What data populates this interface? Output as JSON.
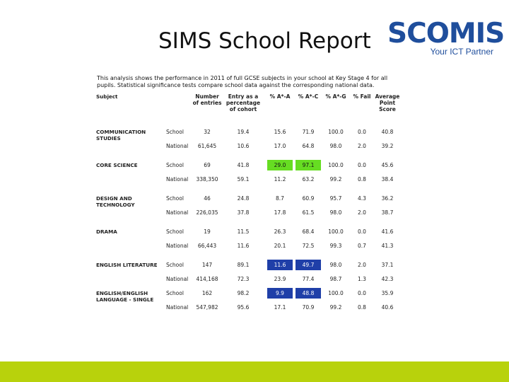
{
  "slide": {
    "title": "SIMS School Report",
    "footer_color": "#b8d20c"
  },
  "logo": {
    "word": "SCOMIS",
    "tagline": "Your ICT Partner",
    "colors": {
      "text": "#1f4e9c",
      "accent": "#b8cc10"
    }
  },
  "report": {
    "intro": "This analysis shows the performance in 2011 of full GCSE subjects in your school at Key Stage 4 for all pupils. Statistical significance tests compare school data against the corresponding national data.",
    "headers": {
      "subject": "Subject",
      "entries": "Number of entries",
      "pct_cohort": "Entry as a percentage of cohort",
      "a_star_a": "% A*-A",
      "a_star_c": "% A*-C",
      "a_star_g": "% A*-G",
      "fail": "% Fail",
      "aps": "Average Point Score"
    },
    "highlight_colors": {
      "green": "#66dd22",
      "blue": "#1f3fa8"
    },
    "subjects": [
      {
        "name": "COMMUNICATION STUDIES",
        "rows": [
          {
            "type": "School",
            "entries": "32",
            "pct": "19.4",
            "aa": "15.6",
            "ac": "71.9",
            "ag": "100.0",
            "fail": "0.0",
            "aps": "40.8"
          },
          {
            "type": "National",
            "entries": "61,645",
            "pct": "10.6",
            "aa": "17.0",
            "ac": "64.8",
            "ag": "98.0",
            "fail": "2.0",
            "aps": "39.2"
          }
        ]
      },
      {
        "name": "CORE SCIENCE",
        "rows": [
          {
            "type": "School",
            "entries": "69",
            "pct": "41.8",
            "aa": "29.0",
            "ac": "97.1",
            "ag": "100.0",
            "fail": "0.0",
            "aps": "45.6"
          },
          {
            "type": "National",
            "entries": "338,350",
            "pct": "59.1",
            "aa": "11.2",
            "ac": "63.2",
            "ag": "99.2",
            "fail": "0.8",
            "aps": "38.4"
          }
        ]
      },
      {
        "name": "DESIGN AND TECHNOLOGY",
        "rows": [
          {
            "type": "School",
            "entries": "46",
            "pct": "24.8",
            "aa": "8.7",
            "ac": "60.9",
            "ag": "95.7",
            "fail": "4.3",
            "aps": "36.2"
          },
          {
            "type": "National",
            "entries": "226,035",
            "pct": "37.8",
            "aa": "17.8",
            "ac": "61.5",
            "ag": "98.0",
            "fail": "2.0",
            "aps": "38.7"
          }
        ]
      },
      {
        "name": "DRAMA",
        "rows": [
          {
            "type": "School",
            "entries": "19",
            "pct": "11.5",
            "aa": "26.3",
            "ac": "68.4",
            "ag": "100.0",
            "fail": "0.0",
            "aps": "41.6"
          },
          {
            "type": "National",
            "entries": "66,443",
            "pct": "11.6",
            "aa": "20.1",
            "ac": "72.5",
            "ag": "99.3",
            "fail": "0.7",
            "aps": "41.3"
          }
        ]
      },
      {
        "name": "ENGLISH LITERATURE",
        "rows": [
          {
            "type": "School",
            "entries": "147",
            "pct": "89.1",
            "aa": "11.6",
            "ac": "49.7",
            "ag": "98.0",
            "fail": "2.0",
            "aps": "37.1"
          },
          {
            "type": "National",
            "entries": "414,168",
            "pct": "72.3",
            "aa": "23.9",
            "ac": "77.4",
            "ag": "98.7",
            "fail": "1.3",
            "aps": "42.3"
          }
        ]
      },
      {
        "name": "ENGLISH/ENGLISH LANGUAGE - SINGLE",
        "rows": [
          {
            "type": "School",
            "entries": "162",
            "pct": "98.2",
            "aa": "9.9",
            "ac": "48.8",
            "ag": "100.0",
            "fail": "0.0",
            "aps": "35.9"
          },
          {
            "type": "National",
            "entries": "547,982",
            "pct": "95.6",
            "aa": "17.1",
            "ac": "70.9",
            "ag": "99.2",
            "fail": "0.8",
            "aps": "40.6"
          }
        ]
      }
    ]
  }
}
